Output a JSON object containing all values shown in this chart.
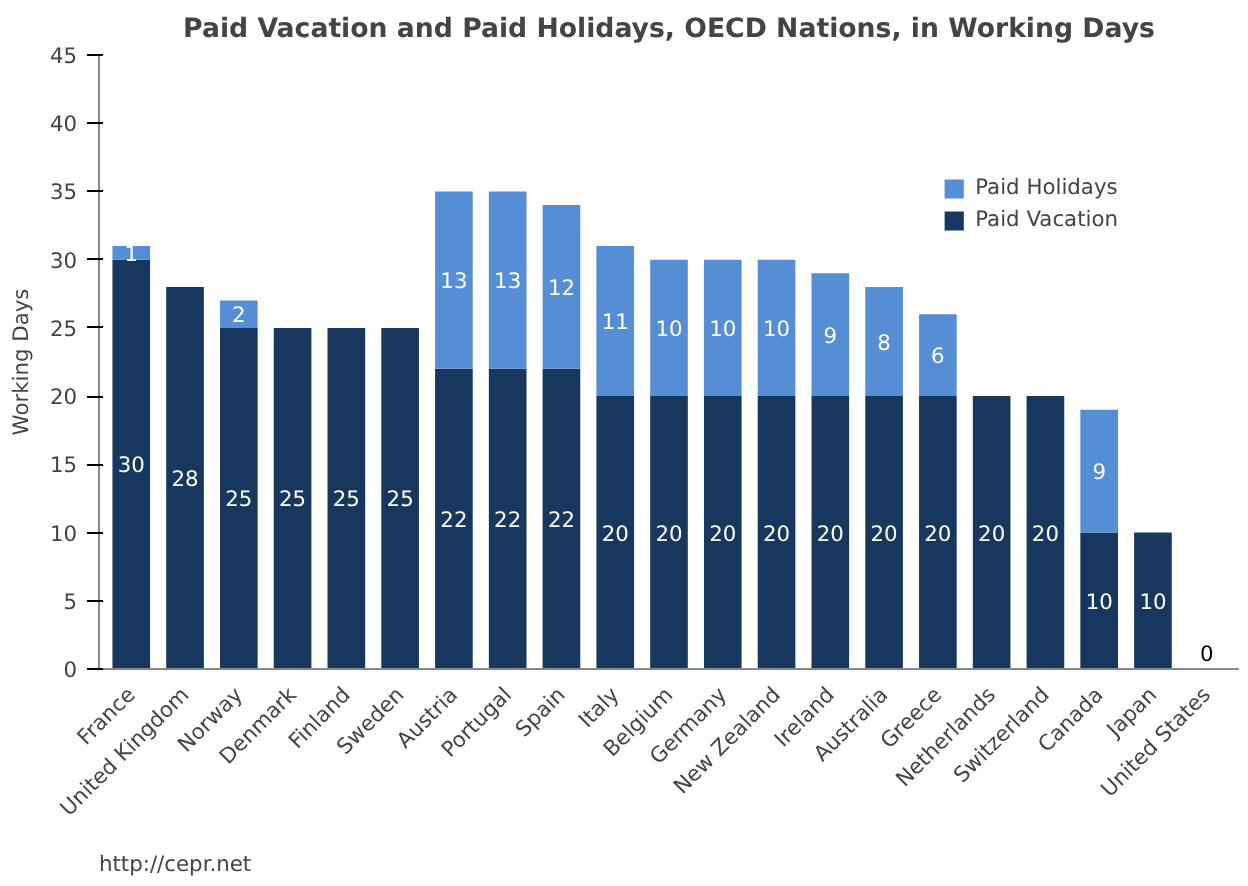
{
  "chart_data": {
    "type": "bar",
    "stacked": true,
    "title": "Paid Vacation and Paid Holidays, OECD Nations, in Working Days",
    "ylabel": "Working Days",
    "categories": [
      "France",
      "United Kingdom",
      "Norway",
      "Denmark",
      "Finland",
      "Sweden",
      "Austria",
      "Portugal",
      "Spain",
      "Italy",
      "Belgium",
      "Germany",
      "New Zealand",
      "Ireland",
      "Australia",
      "Greece",
      "Netherlands",
      "Switzerland",
      "Canada",
      "Japan",
      "United States"
    ],
    "series": [
      {
        "name": "Paid Vacation",
        "color": "#17375e",
        "values": [
          30,
          28,
          25,
          25,
          25,
          25,
          22,
          22,
          22,
          20,
          20,
          20,
          20,
          20,
          20,
          20,
          20,
          20,
          10,
          10,
          0
        ],
        "value_labels": [
          "30",
          "28",
          "25",
          "25",
          "25",
          "25",
          "22",
          "22",
          "22",
          "20",
          "20",
          "20",
          "20",
          "20",
          "20",
          "20",
          "20",
          "20",
          "10",
          "10",
          "0"
        ]
      },
      {
        "name": "Paid Holidays",
        "color": "#558ed5",
        "values": [
          1,
          0,
          2,
          0,
          0,
          0,
          13,
          13,
          12,
          11,
          10,
          10,
          10,
          9,
          8,
          6,
          0,
          0,
          9,
          0,
          0
        ],
        "value_labels": [
          "1",
          null,
          "2",
          null,
          null,
          null,
          "13",
          "13",
          "12",
          "11",
          "10",
          "10",
          "10",
          "9",
          "8",
          "6",
          null,
          null,
          "9",
          null,
          null
        ]
      }
    ],
    "ylim": [
      0,
      45
    ],
    "yticks": [
      0,
      5,
      10,
      15,
      20,
      25,
      30,
      35,
      40,
      45
    ],
    "grid": false,
    "legend": "top right",
    "annotations": [
      "http://cepr.net"
    ]
  }
}
